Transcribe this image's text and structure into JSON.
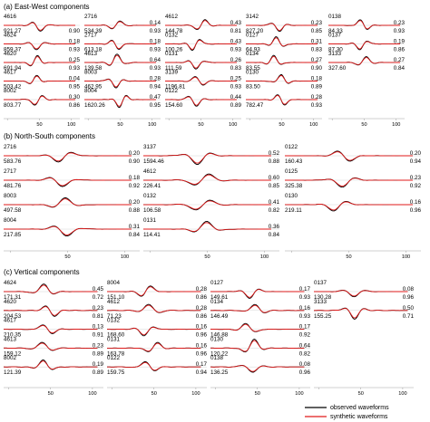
{
  "colors": {
    "observed": "#000000",
    "synthetic": "#e11a1a"
  },
  "chart_data": {
    "type": "line",
    "legend": {
      "placement": "bottom-right",
      "observed_label": "observed waveforms",
      "synthetic_label": "synthetic waveforms"
    },
    "x_ticks": [
      "0",
      "50",
      "100"
    ],
    "sections": [
      {
        "title": "(a) East-West components",
        "columns": [
          [
            {
              "station": "4616",
              "amp": "921.27",
              "cc": "0.90",
              "vr": ""
            },
            {
              "station": "4624",
              "amp": "859.37",
              "cc": "0.93",
              "vr": "0.18"
            },
            {
              "station": "4620",
              "amp": "691.94",
              "cc": "0.93",
              "vr": "0.25"
            },
            {
              "station": "4617",
              "amp": "503.42",
              "cc": "0.95",
              "vr": "0.04"
            },
            {
              "station": "8002",
              "amp": "803.77",
              "cc": "0.86",
              "vr": "0.30"
            }
          ],
          [
            {
              "station": "2716",
              "amp": "534.39",
              "cc": "0.93",
              "vr": "0.14"
            },
            {
              "station": "2717",
              "amp": "613.18",
              "cc": "0.93",
              "vr": "0.18"
            },
            {
              "station": "4613",
              "amp": "139.58",
              "cc": "0.93",
              "vr": "0.64"
            },
            {
              "station": "8003",
              "amp": "462.95",
              "cc": "0.94",
              "vr": "0.28"
            },
            {
              "station": "8004",
              "amp": "1620.26",
              "cc": "0.95",
              "vr": "0.47"
            }
          ],
          [
            {
              "station": "4612",
              "amp": "144.78",
              "cc": "0.81",
              "vr": "0.43"
            },
            {
              "station": "0132",
              "amp": "100.26",
              "cc": "0.93",
              "vr": "0.43"
            },
            {
              "station": "0131",
              "amp": "111.59",
              "cc": "0.83",
              "vr": "0.26"
            },
            {
              "station": "3139",
              "amp": "1196.81",
              "cc": "0.93",
              "vr": "0.25"
            },
            {
              "station": "0122",
              "amp": "154.60",
              "cc": "0.89",
              "vr": "0.44"
            }
          ],
          [
            {
              "station": "3142",
              "amp": "827.20",
              "cc": "0.85",
              "vr": "0.23"
            },
            {
              "station": "0127",
              "amp": "64.93",
              "cc": "0.83",
              "vr": "0.31"
            },
            {
              "station": "0134",
              "amp": "83.55",
              "cc": "0.90",
              "vr": "0.27"
            },
            {
              "station": "0130",
              "amp": "83.50",
              "cc": "0.89",
              "vr": "0.18"
            },
            {
              "station": "",
              "amp": "782.47",
              "cc": "0.93",
              "vr": "0.28"
            }
          ],
          [
            {
              "station": "0138",
              "amp": "84.33",
              "cc": "0.93",
              "vr": "0.23"
            },
            {
              "station": "0137",
              "amp": "87.30",
              "cc": "0.86",
              "vr": "0.19"
            },
            {
              "station": "3133",
              "amp": "327.60",
              "cc": "0.84",
              "vr": "0.27"
            }
          ]
        ]
      },
      {
        "title": "(b) North-South components",
        "columns": [
          [
            {
              "station": "2716",
              "amp": "583.76",
              "cc": "0.90",
              "vr": "0.20"
            },
            {
              "station": "2717",
              "amp": "481.76",
              "cc": "0.92",
              "vr": "0.18"
            },
            {
              "station": "8003",
              "amp": "497.58",
              "cc": "0.88",
              "vr": "0.20"
            },
            {
              "station": "8004",
              "amp": "217.85",
              "cc": "0.84",
              "vr": "0.31"
            }
          ],
          [
            {
              "station": "3137",
              "amp": "1594.46",
              "cc": "0.88",
              "vr": "0.52"
            },
            {
              "station": "4612",
              "amp": "226.41",
              "cc": "0.85",
              "vr": "0.60"
            },
            {
              "station": "0132",
              "amp": "106.58",
              "cc": "0.82",
              "vr": "0.41"
            },
            {
              "station": "0131",
              "amp": "114.41",
              "cc": "0.84",
              "vr": "0.36"
            }
          ],
          [
            {
              "station": "0122",
              "amp": "160.43",
              "cc": "0.94",
              "vr": "0.20"
            },
            {
              "station": "0125",
              "amp": "325.38",
              "cc": "0.92",
              "vr": "0.23"
            },
            {
              "station": "0130",
              "amp": "219.11",
              "cc": "0.96",
              "vr": "0.16"
            }
          ]
        ]
      },
      {
        "title": "(c) Vertical components",
        "columns": [
          [
            {
              "station": "4624",
              "amp": "171.31",
              "cc": "0.72",
              "vr": "0.45"
            },
            {
              "station": "4620",
              "amp": "204.53",
              "cc": "0.81",
              "vr": "0.23"
            },
            {
              "station": "4617",
              "amp": "210.35",
              "cc": "0.91",
              "vr": "0.13"
            },
            {
              "station": "4613",
              "amp": "159.12",
              "cc": "0.89",
              "vr": "0.23"
            },
            {
              "station": "8002",
              "amp": "121.39",
              "cc": "0.89",
              "vr": "0.19"
            }
          ],
          [
            {
              "station": "8004",
              "amp": "151.10",
              "cc": "0.86",
              "vr": "0.28"
            },
            {
              "station": "4612",
              "amp": "71.23",
              "cc": "0.86",
              "vr": "0.28"
            },
            {
              "station": "0132",
              "amp": "168.60",
              "cc": "0.96",
              "vr": "0.16"
            },
            {
              "station": "0131",
              "amp": "163.78",
              "cc": "0.96",
              "vr": "0.16"
            },
            {
              "station": "0122",
              "amp": "159.75",
              "cc": "0.94",
              "vr": "0.17"
            }
          ],
          [
            {
              "station": "0127",
              "amp": "149.61",
              "cc": "0.93",
              "vr": "0.17"
            },
            {
              "station": "0134",
              "amp": "146.49",
              "cc": "0.93",
              "vr": "0.16"
            },
            {
              "station": "",
              "amp": "146.88",
              "cc": "0.92",
              "vr": "0.17"
            },
            {
              "station": "0130",
              "amp": "120.22",
              "cc": "0.82",
              "vr": "0.64"
            },
            {
              "station": "0138",
              "amp": "136.25",
              "cc": "0.96",
              "vr": "0.08"
            }
          ],
          [
            {
              "station": "0137",
              "amp": "130.28",
              "cc": "0.96",
              "vr": "0.08"
            },
            {
              "station": "3133",
              "amp": "155.25",
              "cc": "0.71",
              "vr": "0.50"
            }
          ]
        ]
      }
    ]
  }
}
